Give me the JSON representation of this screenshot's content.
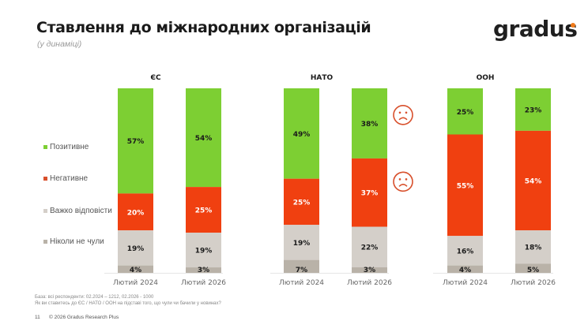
{
  "header": {
    "title": "Ставлення до міжнародних організацій",
    "subtitle": "(у динаміці)",
    "logo": "gradus",
    "logo_accent": "#f07a1a"
  },
  "legend": [
    {
      "label": "Позитивне",
      "color": "#7dcf33"
    },
    {
      "label": "Негативне",
      "color": "#f04010"
    },
    {
      "label": "Важко відповісти",
      "color": "#d4cfc9"
    },
    {
      "label": "Ніколи не чули",
      "color": "#b9b2a8"
    }
  ],
  "chart_data": {
    "type": "bar",
    "stacked": true,
    "title": "Ставлення до міжнародних організацій",
    "subtitle": "(у динаміці)",
    "series_names": [
      "Позитивне",
      "Негативне",
      "Важко відповісти",
      "Ніколи не чули"
    ],
    "colors": [
      "#7dcf33",
      "#f04010",
      "#d4cfc9",
      "#b9b2a8"
    ],
    "label_colors": [
      "#1a1a1a",
      "#ffffff",
      "#1a1a1a",
      "#1a1a1a"
    ],
    "legend_position": "left",
    "groups": [
      {
        "name": "ЄС",
        "categories": [
          "Лютий 2024",
          "Лютий 2026"
        ],
        "values": [
          [
            57,
            20,
            19,
            4
          ],
          [
            54,
            25,
            19,
            3
          ]
        ],
        "annotations": []
      },
      {
        "name": "НАТО",
        "categories": [
          "Лютий 2024",
          "Лютий 2026"
        ],
        "values": [
          [
            49,
            25,
            19,
            7
          ],
          [
            38,
            37,
            22,
            3
          ]
        ],
        "annotations": [
          {
            "category": "Лютий 2026",
            "series": "Позитивне",
            "icon": "sad-face"
          },
          {
            "category": "Лютий 2026",
            "series": "Негативне",
            "icon": "sad-face"
          }
        ]
      },
      {
        "name": "ООН",
        "categories": [
          "Лютий 2024",
          "Лютий 2026"
        ],
        "values": [
          [
            25,
            55,
            16,
            4
          ],
          [
            23,
            54,
            18,
            5
          ]
        ],
        "annotations": []
      }
    ],
    "ylim": [
      0,
      100
    ]
  },
  "footer": {
    "base": "База: всі респонденти: 02.2024 – 1212, 02.2026 - 1000",
    "question": "Як ви ставитесь до ЄС / НАТО / ООН на підставі того, що чули чи бачили у новинах?",
    "page": "11",
    "copyright": "© 2026 Gradus Research Plus"
  }
}
